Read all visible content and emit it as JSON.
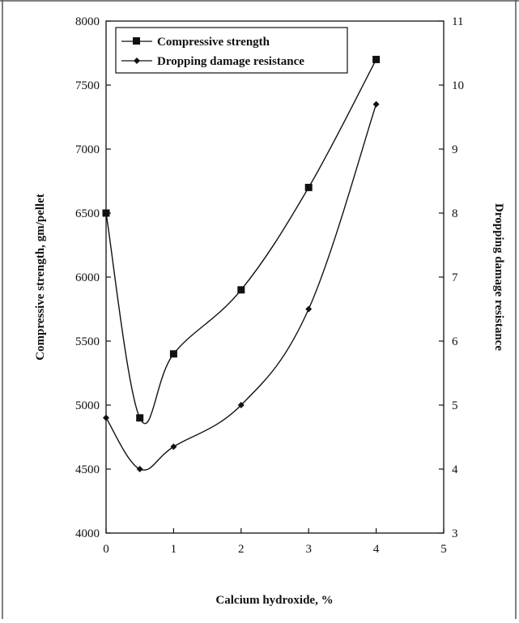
{
  "chart_data": {
    "type": "line",
    "xlabel": "Calcium hydroxide, %",
    "ylabel": "Compressive strength, gm/pellet",
    "y2label": "Dropping damage resistance",
    "xlim": [
      0,
      5
    ],
    "ylim": [
      4000,
      8000
    ],
    "y2lim": [
      3,
      11
    ],
    "x_ticks": [
      "0",
      "1",
      "2",
      "3",
      "4",
      "5"
    ],
    "y_ticks": [
      "4000",
      "4500",
      "5000",
      "5500",
      "6000",
      "6500",
      "7000",
      "7500",
      "8000"
    ],
    "y2_ticks": [
      "3",
      "4",
      "5",
      "6",
      "7",
      "8",
      "9",
      "10",
      "11"
    ],
    "grid": false,
    "legend_position": "top-left",
    "series": [
      {
        "name": "Compressive strength",
        "axis": "left",
        "marker": "square",
        "x": [
          0,
          0.5,
          1,
          2,
          3,
          4
        ],
        "y": [
          6500,
          4900,
          5400,
          5900,
          6700,
          7700
        ]
      },
      {
        "name": "Dropping damage resistance",
        "axis": "right",
        "marker": "diamond",
        "x": [
          0,
          0.5,
          1,
          2,
          3,
          4
        ],
        "y": [
          4.8,
          4.0,
          4.35,
          5.0,
          6.5,
          9.7
        ]
      }
    ]
  }
}
